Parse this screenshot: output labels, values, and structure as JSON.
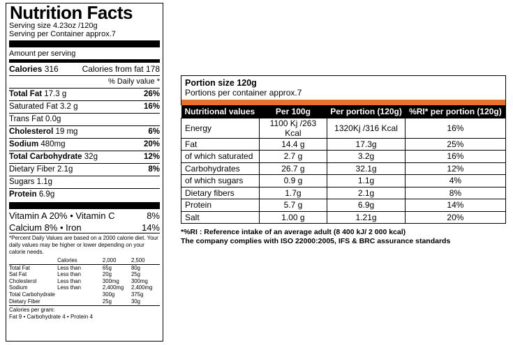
{
  "us_label": {
    "title": "Nutrition Facts",
    "serving_size": "Serving size 4.23oz /120g",
    "servings_per_container": "Serving per Container approx.7",
    "amount_per_serving": "Amount per serving",
    "calories_label": "Calories",
    "calories_value": "316",
    "calories_from_fat": "Calories from fat 178",
    "daily_value_header": "% Daily value *",
    "rows": [
      {
        "name": "Total Fat",
        "amount": "17.3 g",
        "dv": "26%",
        "bold": true
      },
      {
        "name": "Saturated Fat",
        "amount": "3.2 g",
        "dv": "16%",
        "bold": false
      },
      {
        "name": "Trans Fat",
        "amount": "0.0g",
        "dv": "",
        "bold": false
      },
      {
        "name": "Cholesterol",
        "amount": "19 mg",
        "dv": "6%",
        "bold": true
      },
      {
        "name": "Sodium",
        "amount": "480mg",
        "dv": "20%",
        "bold": true
      },
      {
        "name": "Total Carbohydrate",
        "amount": "32g",
        "dv": "12%",
        "bold": true
      },
      {
        "name": "Dietary Fiber",
        "amount": "2.1g",
        "dv": "8%",
        "bold": false
      },
      {
        "name": "Sugars",
        "amount": "1.1g",
        "dv": "",
        "bold": false
      },
      {
        "name": "Protein",
        "amount": "6.9g",
        "dv": "",
        "bold": true
      }
    ],
    "vitamin_a": "Vitamin A 20%",
    "bullet": "•",
    "vitamin_c": "Vitamin C",
    "vitamin_c_value": "8%",
    "calcium": "Calcium  8%",
    "iron": "Iron",
    "iron_value": "14%",
    "disclaimer": "*Percent Daily Values are based on a 2000 calorie diet. Your daily values may be higher or lower depending on your calorie needs.",
    "dv_table": {
      "header": [
        "",
        "Calories",
        "2,000",
        "2,500"
      ],
      "rows": [
        [
          "Total Fat",
          "Less than",
          "65g",
          "80g"
        ],
        [
          "Sat Fat",
          "Less than",
          "20g",
          "25g"
        ],
        [
          "Cholesterol",
          "Less than",
          "300mg",
          "300mg"
        ],
        [
          "Sodium",
          "Less than",
          "2,400mg",
          "2,400mg"
        ],
        [
          "Total Carbohydrate",
          "",
          "300g",
          "375g"
        ],
        [
          "Dietary Fiber",
          "",
          "25g",
          "30g"
        ]
      ]
    },
    "calories_per_gram": "Calories per gram:",
    "cpg_fat": "Fat 9",
    "cpg_carb": "Carbohydrate 4",
    "cpg_protein": "Protein 4"
  },
  "eu_label": {
    "portion_size": "Portion size 120g",
    "portions_per_container": "Portions per container approx.7",
    "accent_color": "#e8722c",
    "headers": [
      "Nutritional values",
      "Per 100g",
      "Per portion (120g)",
      "%RI* per portion (120g)"
    ],
    "rows": [
      [
        "Energy",
        "1100 Kj /263 Kcal",
        "1320Kj /316 Kcal",
        "16%"
      ],
      [
        "Fat",
        "14.4 g",
        "17.3g",
        "25%"
      ],
      [
        "of which saturated",
        "2.7 g",
        "3.2g",
        "16%"
      ],
      [
        "Carbohydrates",
        "26.7 g",
        "32.1g",
        "12%"
      ],
      [
        "of which sugars",
        "0.9 g",
        "1.1g",
        "4%"
      ],
      [
        "Dietary fibers",
        "1.7g",
        "2.1g",
        "8%"
      ],
      [
        "Protein",
        "5.7 g",
        "6.9g",
        "14%"
      ],
      [
        "Salt",
        "1.00 g",
        "1.21g",
        "20%"
      ]
    ],
    "footnote_ri": "*%RI : Reference intake of an average adult (8 400 kJ/ 2 000 kcal)",
    "footnote_iso": "The company complies with ISO 22000:2005, IFS & BRC assurance standards"
  }
}
